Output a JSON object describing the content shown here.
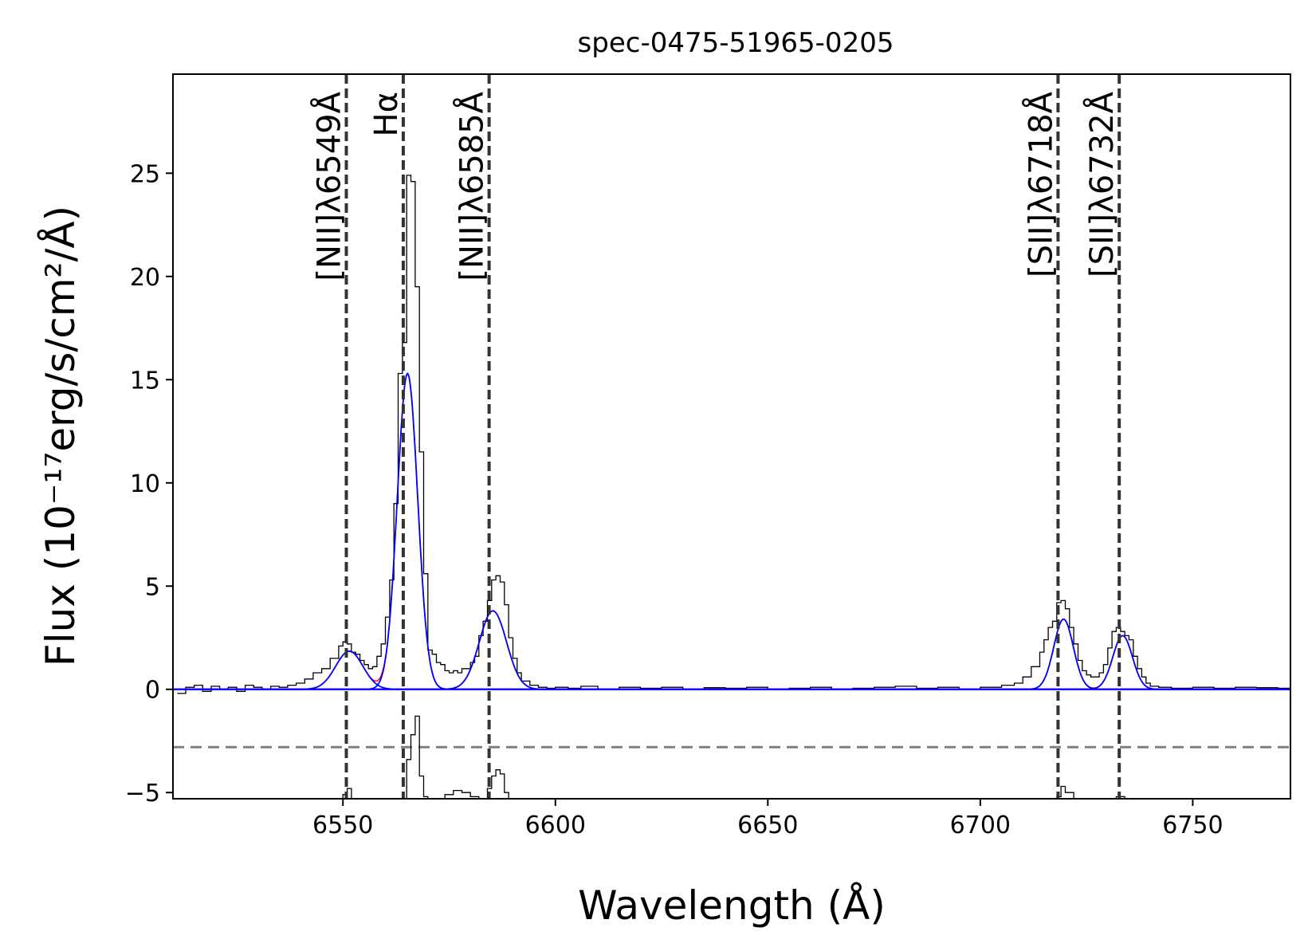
{
  "chart_data": {
    "type": "line",
    "title": "spec-0475-51965-0205",
    "xlabel": "Wavelength (Å)",
    "ylabel": "Flux (10⁻¹⁷erg/s/cm²/Å)",
    "xlim": [
      6510,
      6773
    ],
    "ylim": [
      -5.3,
      29.8
    ],
    "xticks": [
      6550,
      6600,
      6650,
      6700,
      6750
    ],
    "yticks": [
      -5,
      0,
      5,
      10,
      15,
      20,
      25
    ],
    "grid": false,
    "colors": {
      "data": "#000000",
      "fit": "#0000ff",
      "total_model": "#ff0000",
      "residual": "#000000",
      "residual_zero": "#808080",
      "line_markers": "#333333"
    },
    "emission_lines": [
      {
        "label": "[NII]λ6549Å",
        "wavelength": 6550.8
      },
      {
        "label": "Hα",
        "wavelength": 6564.2
      },
      {
        "label": "[NII]λ6585Å",
        "wavelength": 6584.4
      },
      {
        "label": "[SII]λ6718Å",
        "wavelength": 6718.3
      },
      {
        "label": "[SII]λ6732Å",
        "wavelength": 6732.7
      }
    ],
    "gaussian_components": [
      {
        "name": "[NII]λ6549",
        "center": 6551.5,
        "amplitude": 1.85,
        "sigma": 3.2
      },
      {
        "name": "Hα",
        "center": 6565.2,
        "amplitude": 15.3,
        "sigma": 2.4
      },
      {
        "name": "[NII]λ6585",
        "center": 6585.3,
        "amplitude": 3.8,
        "sigma": 3.2
      },
      {
        "name": "[SII]λ6718",
        "center": 6719.6,
        "amplitude": 3.4,
        "sigma": 2.3
      },
      {
        "name": "[SII]λ6732",
        "center": 6733.5,
        "amplitude": 2.6,
        "sigma": 2.3
      }
    ],
    "series": [
      {
        "role": "observed_flux",
        "style": "step",
        "x": [
          6511,
          6513,
          6515,
          6517,
          6519,
          6521,
          6523,
          6525,
          6527,
          6529,
          6531,
          6533,
          6535,
          6537,
          6539,
          6541,
          6543,
          6545,
          6547,
          6549,
          6550,
          6551,
          6552,
          6553,
          6554,
          6555,
          6556,
          6557,
          6558,
          6559,
          6560,
          6561,
          6562,
          6563,
          6564,
          6565,
          6566,
          6567,
          6568,
          6569,
          6570,
          6571,
          6572,
          6573,
          6574,
          6575,
          6576,
          6577,
          6578,
          6579,
          6580,
          6581,
          6582,
          6583,
          6584,
          6585,
          6586,
          6587,
          6588,
          6589,
          6590,
          6591,
          6592,
          6594,
          6596,
          6598,
          6600,
          6603,
          6606,
          6610,
          6615,
          6620,
          6625,
          6630,
          6635,
          6640,
          6645,
          6650,
          6655,
          6660,
          6665,
          6670,
          6675,
          6680,
          6685,
          6690,
          6695,
          6700,
          6705,
          6708,
          6710,
          6712,
          6714,
          6715,
          6716,
          6717,
          6718,
          6719,
          6720,
          6721,
          6722,
          6723,
          6724,
          6725,
          6726,
          6727,
          6728,
          6729,
          6730,
          6731,
          6732,
          6733,
          6734,
          6735,
          6736,
          6737,
          6738,
          6739,
          6740,
          6742,
          6745,
          6750,
          6755,
          6760,
          6765,
          6770,
          6773
        ],
        "y": [
          -0.2,
          0.1,
          0.2,
          -0.1,
          0.15,
          0.0,
          0.1,
          -0.1,
          0.2,
          0.1,
          0.0,
          0.15,
          0.1,
          0.2,
          0.3,
          0.5,
          0.8,
          1.0,
          1.5,
          2.1,
          2.3,
          2.2,
          1.8,
          1.7,
          1.4,
          1.2,
          1.0,
          1.1,
          1.6,
          2.2,
          3.5,
          5.3,
          9.0,
          15.3,
          16.8,
          24.9,
          24.6,
          19.5,
          11.5,
          5.6,
          1.9,
          1.7,
          1.3,
          1.2,
          0.9,
          0.8,
          0.9,
          0.8,
          1.0,
          1.0,
          1.3,
          1.6,
          2.6,
          3.3,
          4.3,
          5.3,
          5.5,
          5.2,
          4.1,
          2.5,
          1.5,
          0.8,
          0.4,
          0.2,
          0.1,
          0.05,
          0.1,
          0.05,
          0.15,
          0.0,
          0.1,
          0.05,
          0.1,
          0.0,
          0.08,
          0.05,
          0.1,
          0.0,
          0.05,
          0.1,
          0.0,
          0.05,
          0.1,
          0.15,
          0.05,
          0.1,
          0.0,
          0.1,
          0.2,
          0.3,
          0.6,
          1.1,
          1.8,
          2.4,
          3.0,
          3.3,
          4.2,
          4.3,
          3.9,
          3.0,
          2.2,
          1.4,
          0.9,
          0.7,
          0.6,
          0.6,
          0.8,
          1.2,
          2.0,
          2.8,
          3.0,
          2.8,
          2.6,
          2.4,
          1.6,
          1.0,
          0.6,
          0.3,
          0.15,
          0.1,
          0.05,
          0.1,
          0.05,
          0.1,
          0.08,
          0.05,
          0.05
        ]
      },
      {
        "role": "residual",
        "style": "step",
        "offset": -2.8,
        "x": [
          6511,
          6515,
          6520,
          6525,
          6530,
          6535,
          6540,
          6545,
          6548,
          6550,
          6551,
          6552,
          6554,
          6556,
          6558,
          6560,
          6561,
          6562,
          6563,
          6564,
          6565,
          6566,
          6567,
          6568,
          6569,
          6570,
          6571,
          6572,
          6574,
          6576,
          6578,
          6580,
          6582,
          6583,
          6584,
          6585,
          6586,
          6587,
          6588,
          6589,
          6590,
          6593,
          6597,
          6600,
          6605,
          6610,
          6620,
          6630,
          6640,
          6650,
          6660,
          6670,
          6680,
          6690,
          6700,
          6705,
          6710,
          6714,
          6716,
          6718,
          6719,
          6720,
          6722,
          6724,
          6726,
          6728,
          6730,
          6732,
          6734,
          6736,
          6738,
          6740,
          6745,
          6750,
          6760,
          6770,
          6773
        ],
        "y": [
          -2.8,
          -2.7,
          -2.9,
          -2.6,
          -2.8,
          -2.7,
          -2.9,
          -2.7,
          -2.8,
          -2.3,
          -2.0,
          -2.5,
          -2.9,
          -2.8,
          -3.0,
          -2.6,
          -3.2,
          -3.5,
          -3.8,
          -4.0,
          -0.6,
          0.6,
          1.5,
          -1.4,
          -2.4,
          -3.2,
          -3.5,
          -3.9,
          -2.3,
          -2.1,
          -2.2,
          -2.4,
          -3.0,
          -3.3,
          -2.0,
          -1.4,
          -1.1,
          -1.3,
          -2.2,
          -2.8,
          -3.0,
          -2.8,
          -2.9,
          -2.7,
          -2.8,
          -2.75,
          -2.7,
          -2.85,
          -2.75,
          -2.8,
          -2.7,
          -2.8,
          -2.75,
          -2.8,
          -2.7,
          -2.6,
          -2.5,
          -2.8,
          -3.0,
          -2.4,
          -1.9,
          -2.2,
          -2.5,
          -2.9,
          -3.1,
          -2.9,
          -2.6,
          -2.4,
          -2.9,
          -3.2,
          -2.8,
          -2.9,
          -2.75,
          -2.8,
          -2.75,
          -2.8,
          -2.8
        ]
      }
    ]
  }
}
